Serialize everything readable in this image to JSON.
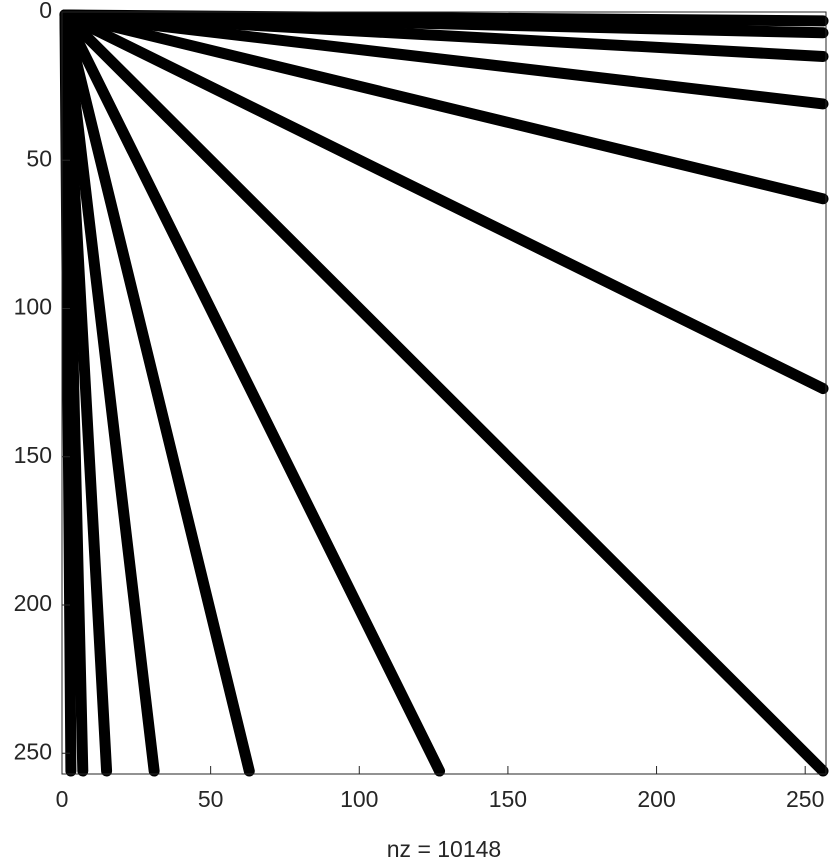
{
  "chart_data": {
    "type": "spy",
    "xlabel": "nz = 10148",
    "xlim": [
      0,
      257
    ],
    "ylim": [
      0,
      257
    ],
    "xticks": [
      0,
      50,
      100,
      150,
      200,
      250
    ],
    "yticks": [
      0,
      50,
      100,
      150,
      200,
      250
    ],
    "y_reversed": true,
    "color": "#000000",
    "bands": {
      "end_x": [
        256,
        256,
        256,
        256,
        256,
        256,
        256,
        3,
        7,
        15,
        31,
        63,
        127
      ],
      "end_y": [
        3,
        7,
        15,
        31,
        63,
        127,
        256,
        256,
        256,
        256,
        256,
        256,
        256
      ]
    }
  }
}
